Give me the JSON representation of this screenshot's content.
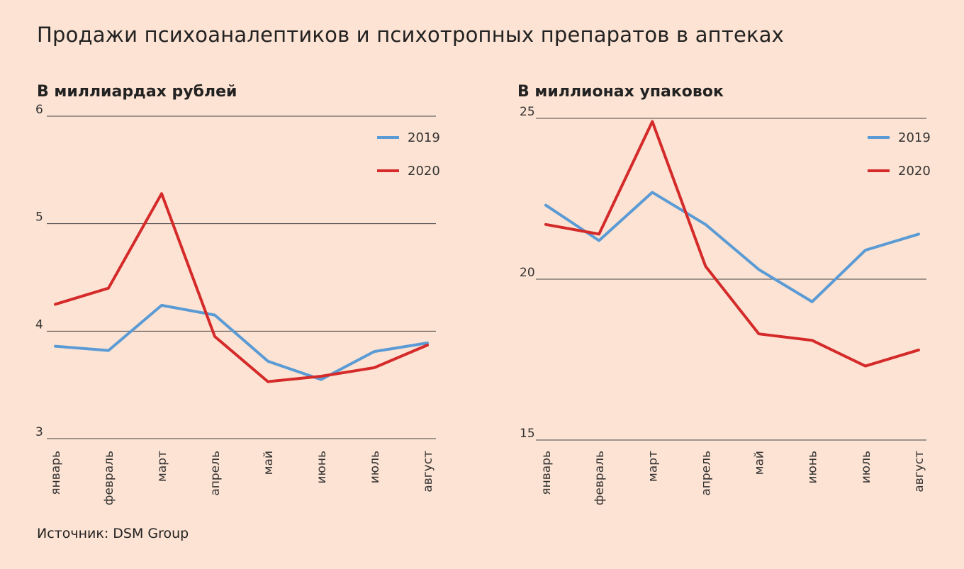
{
  "title": "Продажи психоаналептиков и психотропных препаратов в аптеках",
  "source": "Источник: DSM Group",
  "colors": {
    "2019": "#5b9bd5",
    "2020": "#d42a2a",
    "background": "#fde3d3",
    "grid": "#444444"
  },
  "chart_data": [
    {
      "type": "line",
      "title": "В миллиардах рублей",
      "categories": [
        "январь",
        "февраль",
        "март",
        "апрель",
        "май",
        "июнь",
        "июль",
        "август"
      ],
      "ylim": [
        3,
        6
      ],
      "yticks": [
        3,
        4,
        5,
        6
      ],
      "grid": true,
      "legend_position": "top-right",
      "series": [
        {
          "name": "2019",
          "values": [
            3.86,
            3.82,
            4.24,
            4.15,
            3.72,
            3.55,
            3.81,
            3.89
          ]
        },
        {
          "name": "2020",
          "values": [
            4.25,
            4.4,
            5.28,
            3.95,
            3.53,
            3.58,
            3.66,
            3.87
          ]
        }
      ]
    },
    {
      "type": "line",
      "title": "В миллионах упаковок",
      "categories": [
        "январь",
        "февраль",
        "март",
        "апрель",
        "май",
        "июнь",
        "июль",
        "август"
      ],
      "ylim": [
        15,
        25
      ],
      "yticks": [
        15,
        20,
        25
      ],
      "grid": true,
      "legend_position": "top-right",
      "series": [
        {
          "name": "2019",
          "values": [
            22.3,
            21.2,
            22.7,
            21.7,
            20.3,
            19.3,
            20.9,
            21.4
          ]
        },
        {
          "name": "2020",
          "values": [
            21.7,
            21.4,
            24.9,
            20.4,
            18.3,
            18.1,
            17.3,
            17.8
          ]
        }
      ]
    }
  ]
}
